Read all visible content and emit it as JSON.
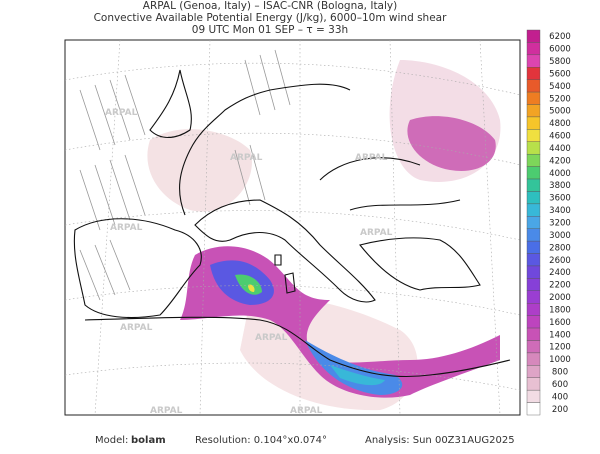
{
  "header": {
    "lines": [
      "ARPAL (Genoa, Italy)  –  ISAC-CNR (Bologna, Italy)",
      "Convective Available Potential Energy (J/kg), 6000–10m wind shear",
      "09 UTC Mon 01 SEP  –  τ = 33h"
    ]
  },
  "watermark": "ARPAL",
  "colorbar": {
    "ticks": [
      6200,
      6000,
      5800,
      5600,
      5400,
      5200,
      5000,
      4800,
      4600,
      4400,
      4200,
      4000,
      3800,
      3600,
      3400,
      3200,
      3000,
      2800,
      2600,
      2400,
      2200,
      2000,
      1800,
      1600,
      1400,
      1200,
      1000,
      800,
      600,
      400,
      200
    ],
    "colors": [
      "#c21f8f",
      "#d02f9e",
      "#dc45b0",
      "#e2343c",
      "#e85a2a",
      "#ee7d22",
      "#f2a324",
      "#f6c52a",
      "#f0e040",
      "#b8e04a",
      "#7dd65a",
      "#4ccc70",
      "#33c49a",
      "#2ebfbf",
      "#38b8d8",
      "#4aa6e6",
      "#4a8ae8",
      "#4a6ee6",
      "#5a58e2",
      "#7048dc",
      "#8640d8",
      "#9a3ed2",
      "#ad3ec8",
      "#bd44be",
      "#c852b6",
      "#cf6cb8",
      "#d688bc",
      "#dea4c6",
      "#e8c0d2",
      "#f2dce4",
      "#ffffff"
    ]
  },
  "footer": {
    "model_label": "Model:",
    "model": "bolam",
    "resolution": "Resolution: 0.104°x0.074°",
    "analysis": "Analysis: Sun 00Z31AUG2025"
  }
}
